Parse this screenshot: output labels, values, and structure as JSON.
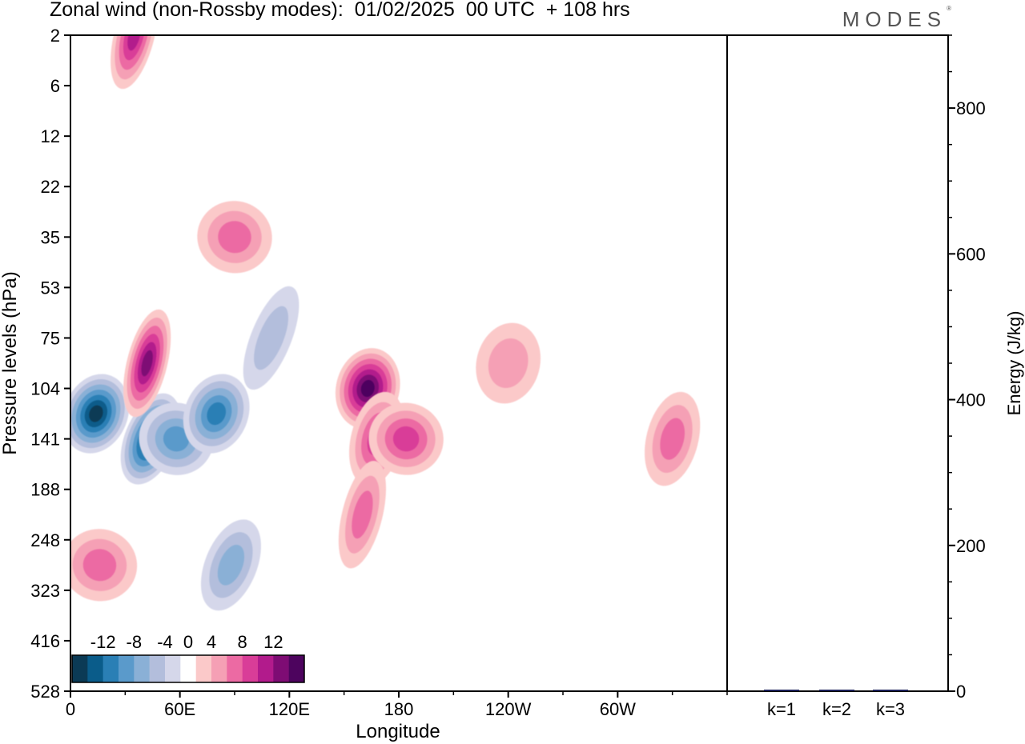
{
  "title": "Zonal wind (non-Rossby modes):  01/02/2025  00 UTC  + 108 hrs",
  "logo": "MODES",
  "logo_mark": "®",
  "chart_data": [
    {
      "type": "heatmap",
      "title": "Zonal wind (non-Rossby modes):  01/02/2025  00 UTC  + 108 hrs",
      "xlabel": "Longitude",
      "ylabel": "Pressure levels (hPa)",
      "x_ticks": [
        "0",
        "60E",
        "120E",
        "180",
        "120W",
        "60W"
      ],
      "x_tick_deg": [
        0,
        60,
        120,
        180,
        240,
        300
      ],
      "xlim": [
        0,
        360
      ],
      "y_ticks": [
        "2",
        "6",
        "12",
        "22",
        "35",
        "53",
        "75",
        "104",
        "141",
        "188",
        "248",
        "323",
        "416",
        "528"
      ],
      "y_scale": "pressure levels (top to bottom)",
      "colorbar": {
        "labels": [
          "-12",
          "-8",
          "-4",
          "0",
          "4",
          "8",
          "12"
        ],
        "levels": [
          -14,
          -12,
          -10,
          -8,
          -6,
          -4,
          -2,
          2,
          4,
          6,
          8,
          10,
          12,
          14
        ],
        "colors": [
          "#0b3a55",
          "#0a5c8a",
          "#2a7fb5",
          "#5a9acb",
          "#8ab0d6",
          "#b3bedc",
          "#d5d7ea",
          "#ffffff",
          "#fbc9c9",
          "#f5a0b5",
          "#ec6aa3",
          "#d93d98",
          "#b21b8c",
          "#7e0c74",
          "#4d045e"
        ]
      },
      "features": [
        {
          "lon": 14,
          "level": "104-141",
          "value": -14
        },
        {
          "lon": 44,
          "level": "141",
          "value": -14
        },
        {
          "lon": 58,
          "level": "141",
          "value": -8
        },
        {
          "lon": 42,
          "level": "75-104",
          "value": 12
        },
        {
          "lon": 80,
          "level": "104-141",
          "value": -10
        },
        {
          "lon": 88,
          "level": "248-323",
          "value": -6
        },
        {
          "lon": 90,
          "level": "35",
          "value": 6
        },
        {
          "lon": 110,
          "level": "75",
          "value": -4
        },
        {
          "lon": 163,
          "level": "104",
          "value": 14
        },
        {
          "lon": 168,
          "level": "141",
          "value": 8
        },
        {
          "lon": 184,
          "level": "141",
          "value": 8
        },
        {
          "lon": 160,
          "level": "188-248",
          "value": 6
        },
        {
          "lon": 240,
          "level": "75-104",
          "value": 4
        },
        {
          "lon": 330,
          "level": "141",
          "value": 6
        },
        {
          "lon": 16,
          "level": "248-323",
          "value": 6
        },
        {
          "lon": 35,
          "level": "2",
          "value": 10
        }
      ],
      "grid": false
    },
    {
      "type": "bar",
      "categories": [
        "k=1",
        "k=2",
        "k=3"
      ],
      "values": [
        2,
        1,
        1
      ],
      "ylabel": "Energy (J/kg)",
      "y_ticks": [
        "0",
        "200",
        "400",
        "600",
        "800"
      ],
      "ylim": [
        0,
        900
      ],
      "color": "#1a1f5a",
      "grid": false
    }
  ]
}
